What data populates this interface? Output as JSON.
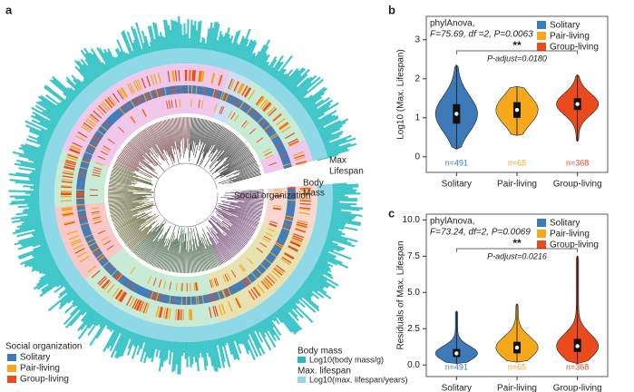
{
  "panel_labels": [
    "a",
    "b",
    "c"
  ],
  "tree": {
    "ring_labels": [
      "Social organization",
      "Body",
      "Mass",
      "Max",
      "Lifespan"
    ],
    "legend_title": "Social organization",
    "legend_items": [
      "Solitary",
      "Pair-living",
      "Group-living"
    ],
    "body_mass_title": "Body mass",
    "body_mass_item": "Log10(body mass/g)",
    "lifespan_title": "Max. lifespan",
    "lifespan_item": "Log10(max. lifespan/years)"
  },
  "chart_data": [
    {
      "type": "violin",
      "test": "phylAnova,",
      "stats": "F=75.69, df =2, P=0.0063",
      "signif": "**",
      "p_adjust": "P-adjust=0.0180",
      "y_label": "Log10 (Max. Lifespan)",
      "categories": [
        "Solitary",
        "Pair-living",
        "Group-living"
      ],
      "colors": [
        "#3d7ab8",
        "#f5a81c",
        "#ea4a1c"
      ],
      "n_labels": [
        "n=491",
        "n=65",
        "n=368"
      ],
      "min": [
        0.2,
        0.55,
        0.4
      ],
      "q1": [
        0.85,
        1.0,
        1.2
      ],
      "medians": [
        1.1,
        1.2,
        1.35
      ],
      "q3": [
        1.35,
        1.4,
        1.5
      ],
      "max": [
        2.35,
        1.8,
        2.1
      ],
      "ylim": [
        -0.4,
        3.6
      ],
      "yticks": [
        0,
        1,
        2,
        3
      ]
    },
    {
      "type": "violin",
      "test": "phylAnova,",
      "stats": "F=73.24, df=2, P=0.0069",
      "signif": "**",
      "p_adjust": "P-adjust=0.0216",
      "y_label": "Residuals of Max. Lifespan",
      "categories": [
        "Solitary",
        "Pair-living",
        "Group-living"
      ],
      "colors": [
        "#3d7ab8",
        "#f5a81c",
        "#ea4a1c"
      ],
      "n_labels": [
        "n=491",
        "n=65",
        "n=368"
      ],
      "min": [
        0.1,
        0.2,
        0.1
      ],
      "q1": [
        0.55,
        0.8,
        0.9
      ],
      "medians": [
        0.8,
        1.2,
        1.3
      ],
      "q3": [
        1.1,
        1.6,
        1.8
      ],
      "max": [
        3.7,
        4.2,
        7.5
      ],
      "ylim": [
        -0.8,
        10.4
      ],
      "yticks": [
        {
          "value": 0,
          "label": "0.0"
        },
        {
          "value": 2.5,
          "label": "2.5"
        },
        {
          "value": 5,
          "label": "5.0"
        },
        {
          "value": 7.5,
          "label": "7.5"
        },
        {
          "value": 10,
          "label": "10.0"
        }
      ]
    }
  ]
}
